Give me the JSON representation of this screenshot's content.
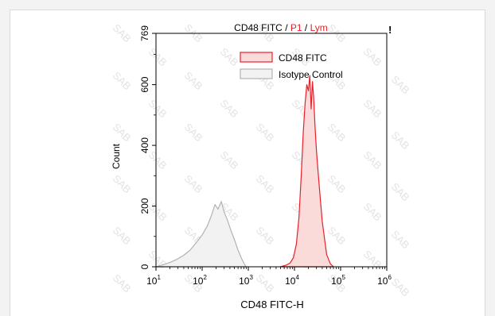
{
  "chart_data": {
    "type": "area",
    "title_parts": [
      {
        "text": "CD48 FITC",
        "color": "#000000"
      },
      {
        "text": " / ",
        "color": "#000000"
      },
      {
        "text": "P1",
        "color": "#e8202a"
      },
      {
        "text": " / ",
        "color": "#000000"
      },
      {
        "text": "Lym",
        "color": "#e8202a"
      }
    ],
    "xlabel": "CD48 FITC-H",
    "ylabel": "Count",
    "x_scale": "log",
    "xlim": [
      10,
      1000000
    ],
    "ylim": [
      0,
      769
    ],
    "x_ticks": [
      {
        "base": "10",
        "exp": "1",
        "value": 10
      },
      {
        "base": "10",
        "exp": "2",
        "value": 100
      },
      {
        "base": "10",
        "exp": "3",
        "value": 1000
      },
      {
        "base": "10",
        "exp": "4",
        "value": 10000
      },
      {
        "base": "10",
        "exp": "5",
        "value": 100000
      },
      {
        "base": "10",
        "exp": "6",
        "value": 1000000
      }
    ],
    "y_ticks": [
      0,
      200,
      400,
      600,
      769
    ],
    "legend_position": "top-right",
    "grid": false,
    "series": [
      {
        "name": "CD48 FITC",
        "stroke": "#e8202a",
        "fill": "#fbdada",
        "x": [
          5000,
          6500,
          8000,
          9500,
          11000,
          12500,
          14000,
          15500,
          17000,
          18500,
          20000,
          21500,
          23000,
          24500,
          26000,
          28000,
          30000,
          33000,
          36000,
          40000,
          45000,
          50000,
          60000,
          70000
        ],
        "y": [
          0,
          5,
          12,
          30,
          75,
          160,
          300,
          440,
          540,
          600,
          580,
          630,
          520,
          610,
          560,
          460,
          380,
          300,
          230,
          150,
          90,
          40,
          10,
          0
        ]
      },
      {
        "name": "Isotype Control",
        "stroke": "#b3b3b3",
        "fill": "#f2f2f2",
        "x": [
          10,
          14,
          20,
          28,
          40,
          55,
          75,
          100,
          130,
          160,
          190,
          220,
          260,
          300,
          350,
          420,
          500,
          600,
          700,
          800,
          900
        ],
        "y": [
          0,
          6,
          14,
          24,
          38,
          55,
          80,
          105,
          135,
          170,
          205,
          190,
          215,
          180,
          155,
          120,
          90,
          55,
          30,
          12,
          0
        ]
      }
    ]
  },
  "marker": "!",
  "watermark": "SAB"
}
